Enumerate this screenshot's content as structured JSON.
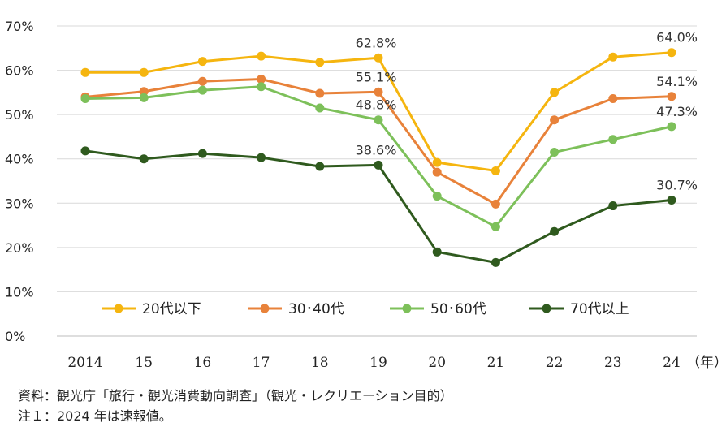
{
  "chart_data": {
    "type": "line",
    "title": "",
    "xlabel": "",
    "ylabel": "",
    "x_unit": "（年）",
    "categories": [
      "2014",
      "15",
      "16",
      "17",
      "18",
      "19",
      "20",
      "21",
      "22",
      "23",
      "24"
    ],
    "yticks": [
      "0%",
      "10%",
      "20%",
      "30%",
      "40%",
      "50%",
      "60%",
      "70%"
    ],
    "ylim": [
      0,
      70
    ],
    "grid": true,
    "legend_position": "bottom-inside",
    "series": [
      {
        "name": "20代以下",
        "color": "#F5B50F",
        "values": [
          59.5,
          59.5,
          62.0,
          63.2,
          61.8,
          62.8,
          39.2,
          37.3,
          55.0,
          63.0,
          64.0
        ]
      },
      {
        "name": "30･40代",
        "color": "#E8823A",
        "values": [
          54.0,
          55.2,
          57.5,
          58.0,
          54.8,
          55.1,
          37.0,
          29.8,
          48.8,
          53.6,
          54.1
        ]
      },
      {
        "name": "50･60代",
        "color": "#7DC05A",
        "values": [
          53.6,
          53.8,
          55.5,
          56.3,
          51.5,
          48.8,
          31.6,
          24.7,
          41.5,
          44.4,
          47.3
        ]
      },
      {
        "name": "70代以上",
        "color": "#2F5A1E",
        "values": [
          41.8,
          40.0,
          41.2,
          40.3,
          38.3,
          38.6,
          19.0,
          16.6,
          23.6,
          29.4,
          30.7
        ]
      }
    ],
    "data_labels": [
      {
        "series": 0,
        "index": 5,
        "text": "62.8%"
      },
      {
        "series": 1,
        "index": 5,
        "text": "55.1%"
      },
      {
        "series": 2,
        "index": 5,
        "text": "48.8%"
      },
      {
        "series": 3,
        "index": 5,
        "text": "38.6%"
      },
      {
        "series": 0,
        "index": 10,
        "text": "64.0%"
      },
      {
        "series": 1,
        "index": 10,
        "text": "54.1%"
      },
      {
        "series": 2,
        "index": 10,
        "text": "47.3%"
      },
      {
        "series": 3,
        "index": 10,
        "text": "30.7%"
      }
    ]
  },
  "notes": {
    "source": "資料：観光庁「旅行・観光消費動向調査」（観光・レクリエーション目的）",
    "note1": "注１：2024 年は速報値。"
  }
}
